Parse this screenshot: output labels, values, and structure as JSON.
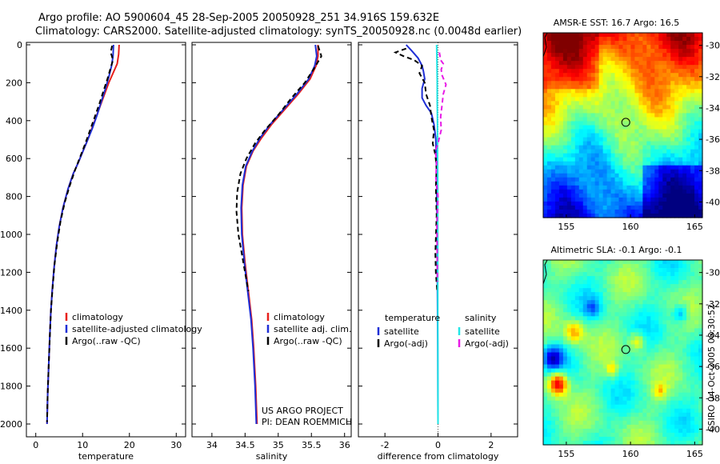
{
  "header": {
    "line1": "Argo profile: AO 5900604_45 28-Sep-2005 20050928_251 34.916S 159.632E",
    "line2": "Climatology: CARS2000. Satellite-adjusted climatology: synTS_20050928.nc (0.0048d earlier)"
  },
  "colors": {
    "climatology": "#e8201c",
    "satellite": "#1f2fd6",
    "argo": "#000000",
    "sal_sat": "#22e6e6",
    "sal_argo": "#e81ce6"
  },
  "credit": {
    "line1": "US ARGO PROJECT",
    "line2": "PI: DEAN ROEMMICH"
  },
  "footer_stamp": "CSIRO 04-Oct-2005 08:30:52",
  "chart_data": [
    {
      "type": "line",
      "id": "temperature",
      "xlabel": "temperature",
      "ylabel": "",
      "xlim": [
        -2,
        32
      ],
      "ylim": [
        2050,
        0
      ],
      "xticks": [
        0,
        10,
        20,
        30
      ],
      "yticks": [
        0,
        200,
        400,
        600,
        800,
        1000,
        1200,
        1400,
        1600,
        1800,
        2000
      ],
      "legend_location": "lower-center",
      "series": [
        {
          "name": "climatology",
          "color": "#e8201c",
          "dash": "",
          "points": [
            [
              17.8,
              0
            ],
            [
              17.7,
              50
            ],
            [
              17.4,
              100
            ],
            [
              16.5,
              150
            ],
            [
              15.6,
              200
            ],
            [
              14.7,
              260
            ],
            [
              13.8,
              320
            ],
            [
              12.9,
              380
            ],
            [
              12.0,
              440
            ],
            [
              11.1,
              500
            ],
            [
              10.1,
              560
            ],
            [
              9.1,
              620
            ],
            [
              8.0,
              680
            ],
            [
              6.9,
              760
            ],
            [
              5.8,
              860
            ],
            [
              5.0,
              960
            ],
            [
              4.4,
              1060
            ],
            [
              3.9,
              1180
            ],
            [
              3.5,
              1300
            ],
            [
              3.2,
              1420
            ],
            [
              2.95,
              1560
            ],
            [
              2.75,
              1700
            ],
            [
              2.55,
              1840
            ],
            [
              2.4,
              2000
            ]
          ]
        },
        {
          "name": "satellite-adjusted climatology",
          "color": "#1f2fd6",
          "dash": "",
          "points": [
            [
              16.6,
              0
            ],
            [
              16.5,
              60
            ],
            [
              16.2,
              110
            ],
            [
              15.6,
              170
            ],
            [
              14.9,
              230
            ],
            [
              14.0,
              300
            ],
            [
              13.1,
              370
            ],
            [
              12.1,
              440
            ],
            [
              11.1,
              500
            ],
            [
              10.1,
              560
            ],
            [
              9.1,
              620
            ],
            [
              8.0,
              680
            ],
            [
              6.9,
              760
            ],
            [
              5.8,
              860
            ],
            [
              5.0,
              960
            ],
            [
              4.4,
              1060
            ],
            [
              3.9,
              1180
            ],
            [
              3.5,
              1300
            ],
            [
              3.2,
              1420
            ],
            [
              2.95,
              1560
            ],
            [
              2.75,
              1700
            ],
            [
              2.55,
              1840
            ],
            [
              2.4,
              2000
            ]
          ]
        },
        {
          "name": "Argo(..raw -QC)",
          "color": "#000000",
          "dash": "6,4",
          "points": [
            [
              16.3,
              5
            ],
            [
              16.0,
              40
            ],
            [
              16.5,
              80
            ],
            [
              16.0,
              120
            ],
            [
              15.3,
              180
            ],
            [
              14.5,
              240
            ],
            [
              13.6,
              310
            ],
            [
              12.6,
              380
            ],
            [
              11.6,
              450
            ],
            [
              10.6,
              520
            ],
            [
              9.5,
              590
            ],
            [
              8.4,
              660
            ],
            [
              7.3,
              740
            ],
            [
              6.2,
              830
            ],
            [
              5.3,
              930
            ],
            [
              4.6,
              1040
            ],
            [
              4.0,
              1160
            ],
            [
              3.6,
              1280
            ],
            [
              3.25,
              1400
            ],
            [
              3.0,
              1540
            ],
            [
              2.75,
              1700
            ],
            [
              2.55,
              1840
            ],
            [
              2.4,
              1990
            ]
          ]
        }
      ],
      "legend": [
        "climatology",
        "satellite-adjusted climatology",
        "Argo(..raw -QC)"
      ]
    },
    {
      "type": "line",
      "id": "salinity",
      "xlabel": "salinity",
      "ylabel": "",
      "xlim": [
        33.7,
        36.1
      ],
      "ylim": [
        2050,
        0
      ],
      "xticks": [
        34,
        34.5,
        35,
        35.5,
        36
      ],
      "legend_location": "lower-right",
      "series": [
        {
          "name": "climatology",
          "color": "#e8201c",
          "dash": "",
          "points": [
            [
              35.6,
              0
            ],
            [
              35.6,
              60
            ],
            [
              35.57,
              110
            ],
            [
              35.48,
              180
            ],
            [
              35.3,
              260
            ],
            [
              35.1,
              340
            ],
            [
              34.9,
              420
            ],
            [
              34.75,
              490
            ],
            [
              34.62,
              560
            ],
            [
              34.52,
              640
            ],
            [
              34.47,
              740
            ],
            [
              34.45,
              860
            ],
            [
              34.46,
              1000
            ],
            [
              34.5,
              1150
            ],
            [
              34.55,
              1300
            ],
            [
              34.6,
              1450
            ],
            [
              34.63,
              1600
            ],
            [
              34.66,
              1800
            ],
            [
              34.68,
              2000
            ]
          ]
        },
        {
          "name": "satellite adj. clim.",
          "color": "#1f2fd6",
          "dash": "",
          "points": [
            [
              35.56,
              0
            ],
            [
              35.58,
              60
            ],
            [
              35.55,
              110
            ],
            [
              35.46,
              180
            ],
            [
              35.28,
              260
            ],
            [
              35.08,
              340
            ],
            [
              34.88,
              420
            ],
            [
              34.73,
              490
            ],
            [
              34.61,
              560
            ],
            [
              34.51,
              640
            ],
            [
              34.46,
              740
            ],
            [
              34.44,
              860
            ],
            [
              34.45,
              1000
            ],
            [
              34.49,
              1150
            ],
            [
              34.54,
              1300
            ],
            [
              34.59,
              1450
            ],
            [
              34.62,
              1600
            ],
            [
              34.65,
              1800
            ],
            [
              34.67,
              2000
            ]
          ]
        },
        {
          "name": "Argo(..raw -QC)",
          "color": "#000000",
          "dash": "6,4",
          "points": [
            [
              35.6,
              5
            ],
            [
              35.65,
              60
            ],
            [
              35.55,
              120
            ],
            [
              35.4,
              200
            ],
            [
              35.2,
              280
            ],
            [
              35.0,
              370
            ],
            [
              34.8,
              450
            ],
            [
              34.65,
              520
            ],
            [
              34.52,
              600
            ],
            [
              34.43,
              680
            ],
            [
              34.38,
              780
            ],
            [
              34.37,
              880
            ],
            [
              34.4,
              1000
            ],
            [
              34.45,
              1100
            ],
            [
              34.5,
              1200
            ],
            [
              34.55,
              1300
            ]
          ]
        }
      ],
      "legend": [
        "climatology",
        "satellite adj. clim.",
        "Argo(..raw -QC)"
      ]
    },
    {
      "type": "line",
      "id": "difference",
      "xlabel": "difference from climatology",
      "ylabel": "",
      "xlim": [
        -3,
        3
      ],
      "ylim": [
        2050,
        0
      ],
      "xticks": [
        -2,
        0,
        2
      ],
      "legend_location": "lower-center",
      "legend_titles": [
        "temperature",
        "salinity"
      ],
      "series": [
        {
          "name": "satellite",
          "group": "temperature",
          "color": "#1f2fd6",
          "dash": "",
          "points": [
            [
              -1.2,
              0
            ],
            [
              -1.0,
              30
            ],
            [
              -0.75,
              70
            ],
            [
              -0.6,
              110
            ],
            [
              -0.55,
              140
            ],
            [
              -0.5,
              180
            ],
            [
              -0.6,
              230
            ],
            [
              -0.6,
              280
            ],
            [
              -0.45,
              320
            ],
            [
              -0.25,
              360
            ],
            [
              -0.15,
              420
            ],
            [
              -0.08,
              500
            ],
            [
              -0.05,
              700
            ],
            [
              -0.03,
              1000
            ],
            [
              -0.02,
              1300
            ],
            [
              -0.01,
              1600
            ],
            [
              0,
              2000
            ]
          ]
        },
        {
          "name": "Argo(-adj)",
          "group": "temperature",
          "color": "#000000",
          "dash": "6,4",
          "points": [
            [
              -1.2,
              20
            ],
            [
              -1.6,
              40
            ],
            [
              -1.3,
              60
            ],
            [
              -0.9,
              80
            ],
            [
              -0.6,
              110
            ],
            [
              -0.7,
              150
            ],
            [
              -0.5,
              200
            ],
            [
              -0.45,
              260
            ],
            [
              -0.3,
              320
            ],
            [
              -0.25,
              380
            ],
            [
              -0.15,
              450
            ],
            [
              -0.2,
              520
            ],
            [
              -0.1,
              580
            ],
            [
              -0.05,
              650
            ],
            [
              -0.08,
              750
            ],
            [
              -0.05,
              900
            ],
            [
              -0.1,
              1100
            ],
            [
              -0.08,
              1200
            ],
            [
              -0.03,
              1300
            ]
          ]
        },
        {
          "name": "satellite",
          "group": "salinity",
          "color": "#22e6e6",
          "dash": "",
          "points": [
            [
              -0.05,
              0
            ],
            [
              -0.04,
              100
            ],
            [
              -0.03,
              200
            ],
            [
              -0.03,
              300
            ],
            [
              -0.02,
              400
            ],
            [
              -0.02,
              500
            ],
            [
              -0.01,
              700
            ],
            [
              -0.01,
              1000
            ],
            [
              -0.005,
              1500
            ],
            [
              0,
              2000
            ]
          ]
        },
        {
          "name": "Argo(-adj)",
          "group": "salinity",
          "color": "#e81ce6",
          "dash": "6,4",
          "points": [
            [
              0.05,
              40
            ],
            [
              0.1,
              80
            ],
            [
              0.2,
              100
            ],
            [
              0.12,
              130
            ],
            [
              0.15,
              160
            ],
            [
              0.3,
              210
            ],
            [
              0.2,
              260
            ],
            [
              0.15,
              320
            ],
            [
              0.1,
              380
            ],
            [
              0.12,
              450
            ],
            [
              0.0,
              520
            ],
            [
              -0.1,
              560
            ],
            [
              -0.05,
              620
            ],
            [
              -0.08,
              700
            ],
            [
              0.0,
              800
            ],
            [
              -0.04,
              950
            ],
            [
              -0.03,
              1100
            ],
            [
              -0.02,
              1250
            ]
          ]
        }
      ],
      "legend": [
        "satellite",
        "Argo(-adj)",
        "satellite",
        "Argo(-adj)"
      ]
    },
    {
      "type": "heatmap",
      "id": "sst_map",
      "title": "AMSR-E SST: 16.7  Argo: 16.5",
      "xlim": [
        153.2,
        165.6
      ],
      "ylim": [
        -41,
        -29.2
      ],
      "xticks": [
        155,
        160,
        165
      ],
      "yticks": [
        -30,
        -32,
        -34,
        -36,
        -38,
        -40
      ],
      "marker": {
        "lon": 159.632,
        "lat": -34.916
      }
    },
    {
      "type": "heatmap",
      "id": "sla_map",
      "title": "Altimetric SLA: -0.1  Argo: -0.1",
      "xlim": [
        153.2,
        165.6
      ],
      "ylim": [
        -41,
        -29.2
      ],
      "xticks": [
        155,
        160,
        165
      ],
      "yticks": [
        -30,
        -32,
        -34,
        -36,
        -38,
        -40
      ],
      "marker": {
        "lon": 159.632,
        "lat": -34.916
      }
    }
  ]
}
